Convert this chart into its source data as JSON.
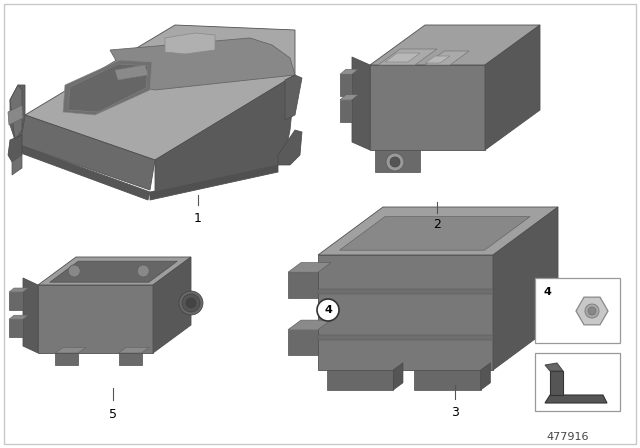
{
  "background_color": "#ffffff",
  "border_color": "#c8c8c8",
  "diagram_number": "477916",
  "gray_face": "#7a7a7a",
  "gray_top": "#b2b2b2",
  "gray_side": "#565656",
  "gray_dark": "#525252",
  "gray_mid": "#888888",
  "gray_light": "#c0c0c0",
  "gray_darker": "#444444",
  "ec": "#505050",
  "lw": 0.6,
  "parts_label_fs": 9,
  "number_fs": 8
}
